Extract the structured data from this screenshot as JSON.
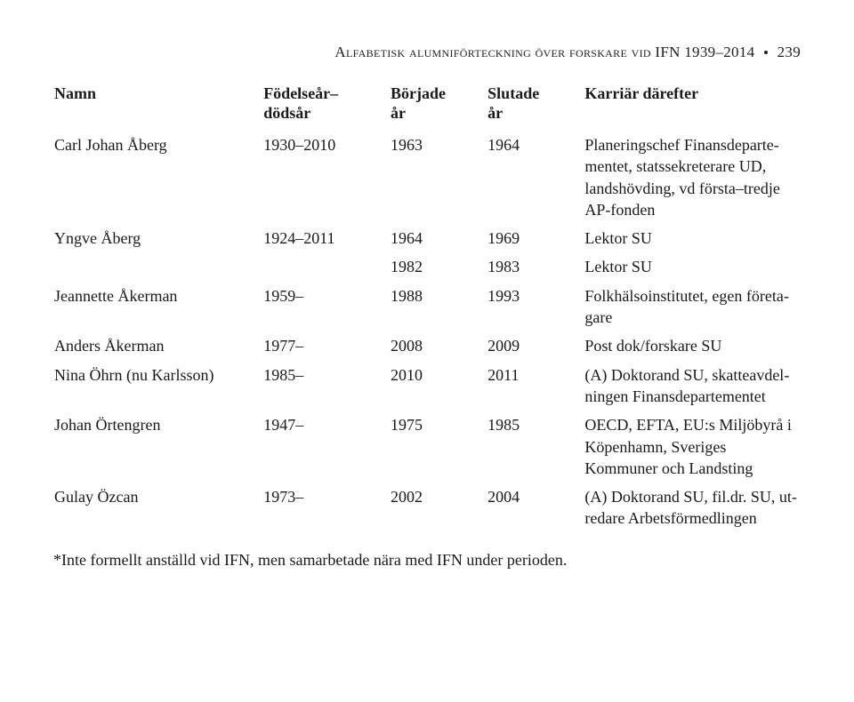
{
  "header": {
    "running_title": "Alfabetisk alumniförteckning över forskare vid IFN 1939–2014",
    "page_number": "239"
  },
  "table": {
    "columns": [
      {
        "line1": "Namn",
        "line2": ""
      },
      {
        "line1": "Födelseår–",
        "line2": "dödsår"
      },
      {
        "line1": "Började",
        "line2": "år"
      },
      {
        "line1": "Slutade",
        "line2": "år"
      },
      {
        "line1": "Karriär därefter",
        "line2": ""
      }
    ],
    "rows": [
      {
        "name": "Carl Johan Åberg",
        "birth": "1930–2010",
        "start": "1963",
        "end": "1964",
        "career": "Planeringschef Finansdeparte­mentet, statssekreterare UD, landshövding, vd första–tredje AP-fonden"
      },
      {
        "name": "Yngve Åberg",
        "birth": "1924–2011",
        "start": "1964",
        "end": "1969",
        "career": "Lektor SU"
      },
      {
        "name": "",
        "birth": "",
        "start": "1982",
        "end": "1983",
        "career": "Lektor SU"
      },
      {
        "name": "Jeannette Åkerman",
        "birth": "1959–",
        "start": "1988",
        "end": "1993",
        "career": "Folkhälsoinstitutet, egen företa­gare"
      },
      {
        "name": "Anders Åkerman",
        "birth": "1977–",
        "start": "2008",
        "end": "2009",
        "career": "Post dok/forskare SU"
      },
      {
        "name": "Nina Öhrn (nu Karlsson)",
        "birth": "1985–",
        "start": "2010",
        "end": "2011",
        "career": "(A) Doktorand SU, skatteavdel­ningen Finansdepartementet"
      },
      {
        "name": "Johan Örtengren",
        "birth": "1947–",
        "start": "1975",
        "end": "1985",
        "career": "OECD, EFTA, EU:s Miljöbyrå i Köpenhamn, Sveriges Kommuner och Landsting"
      },
      {
        "name": "Gulay Özcan",
        "birth": "1973–",
        "start": "2002",
        "end": "2004",
        "career": "(A) Doktorand SU, fil.dr. SU, ut­redare Arbetsförmedlingen"
      }
    ]
  },
  "footnote": "*Inte formellt anställd vid IFN, men samarbetade nära med IFN under perioden."
}
